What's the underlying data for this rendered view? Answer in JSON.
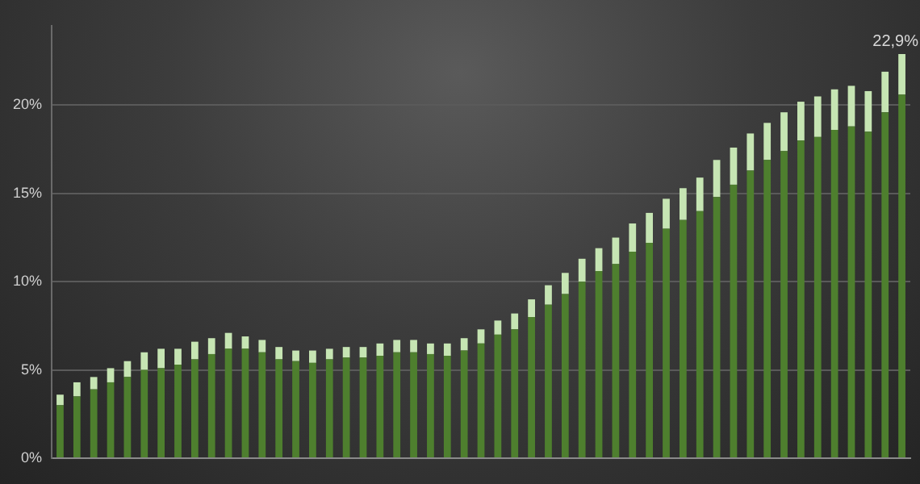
{
  "chart_data": {
    "type": "bar",
    "stacked": true,
    "grid": "y",
    "categories": [
      null,
      null,
      null,
      null,
      null,
      null,
      null,
      null,
      null,
      null,
      null,
      null,
      null,
      null,
      null,
      null,
      null,
      null,
      null,
      null,
      null,
      null,
      null,
      null,
      null,
      null,
      null,
      null,
      null,
      null,
      null,
      null,
      null,
      null,
      null,
      null,
      null,
      null,
      null,
      null,
      null,
      null,
      null,
      null,
      null,
      null,
      null,
      null,
      null,
      null,
      null
    ],
    "ylim": [
      0,
      24.5
    ],
    "yticks": [
      {
        "value": 0,
        "label": "0%"
      },
      {
        "value": 5,
        "label": "5%"
      },
      {
        "value": 10,
        "label": "10%"
      },
      {
        "value": 15,
        "label": "15%"
      },
      {
        "value": 20,
        "label": "20%"
      }
    ],
    "series": [
      {
        "color": "#4e7f2e",
        "values": [
          3.0,
          3.5,
          3.9,
          4.3,
          4.6,
          5.0,
          5.1,
          5.3,
          5.6,
          5.9,
          6.2,
          6.2,
          6.0,
          5.6,
          5.5,
          5.4,
          5.6,
          5.7,
          5.7,
          5.8,
          6.0,
          6.0,
          5.9,
          5.8,
          6.1,
          6.5,
          7.0,
          7.3,
          8.0,
          8.7,
          9.3,
          10.0,
          10.6,
          11.0,
          11.7,
          12.2,
          13.0,
          13.5,
          14.0,
          14.8,
          15.5,
          16.3,
          16.9,
          17.4,
          18.0,
          18.2,
          18.6,
          18.8,
          18.5,
          19.6,
          20.6
        ]
      },
      {
        "color": "#c6e5b3",
        "values": [
          0.6,
          0.8,
          0.7,
          0.8,
          0.9,
          1.0,
          1.1,
          0.9,
          1.0,
          0.9,
          0.9,
          0.7,
          0.7,
          0.7,
          0.6,
          0.7,
          0.6,
          0.6,
          0.6,
          0.7,
          0.7,
          0.7,
          0.6,
          0.7,
          0.7,
          0.8,
          0.8,
          0.9,
          1.0,
          1.1,
          1.2,
          1.3,
          1.3,
          1.5,
          1.6,
          1.7,
          1.7,
          1.8,
          1.9,
          2.1,
          2.1,
          2.1,
          2.1,
          2.2,
          2.2,
          2.3,
          2.3,
          2.3,
          2.3,
          2.3,
          2.3
        ]
      }
    ],
    "totals": [
      null,
      null,
      null,
      null,
      null,
      null,
      null,
      null,
      null,
      null,
      null,
      null,
      null,
      null,
      null,
      null,
      null,
      null,
      null,
      null,
      null,
      null,
      null,
      null,
      null,
      null,
      null,
      null,
      null,
      null,
      null,
      null,
      null,
      null,
      null,
      null,
      null,
      null,
      null,
      null,
      null,
      null,
      null,
      null,
      null,
      null,
      null,
      null,
      null,
      null,
      "22,9%"
    ]
  }
}
